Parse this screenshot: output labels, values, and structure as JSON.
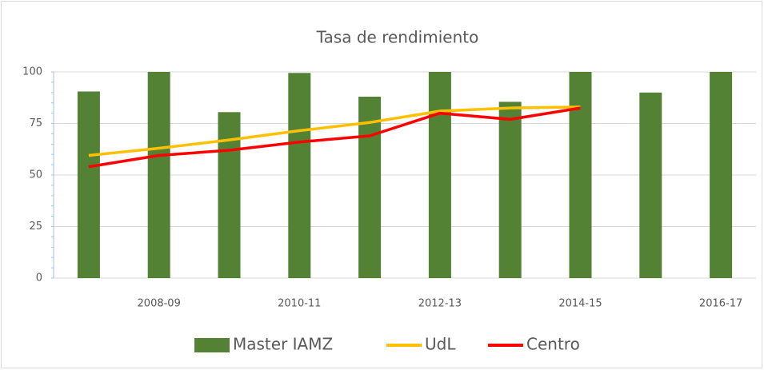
{
  "chart_data": {
    "type": "combo",
    "title": "Tasa de rendimiento",
    "categories": [
      null,
      "2008-09",
      null,
      "2010-11",
      null,
      "2012-13",
      null,
      "2014-15",
      null,
      "2016-17"
    ],
    "series": [
      {
        "name": "Master IAMZ",
        "type": "bar",
        "color": "#548235",
        "values": [
          90.5,
          100,
          80.5,
          99.5,
          88,
          100,
          85.5,
          100,
          90,
          100
        ]
      },
      {
        "name": "UdL",
        "type": "line",
        "color": "#ffc000",
        "values": [
          59.5,
          63,
          67,
          71.5,
          75.5,
          81,
          82.5,
          83,
          null,
          null
        ]
      },
      {
        "name": "Centro",
        "type": "line",
        "color": "#ff0000",
        "values": [
          54,
          59.5,
          62,
          66,
          69,
          80,
          77,
          82.5,
          null,
          null
        ]
      }
    ],
    "ylim": [
      0,
      100
    ],
    "yticks": [
      0,
      25,
      50,
      75,
      100
    ],
    "grid": true,
    "legend": "bottom"
  }
}
